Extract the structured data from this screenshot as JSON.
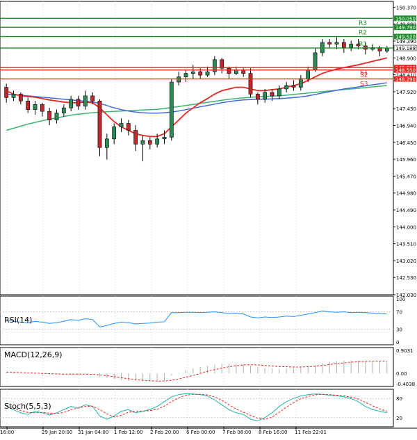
{
  "chart_data": [
    {
      "type": "candlestick",
      "panel": "price",
      "ylim": [
        142.03,
        150.54
      ],
      "yticks": [
        "150.370",
        "149.880",
        "149.390",
        "148.900",
        "148.410",
        "147.920",
        "147.430",
        "146.940",
        "146.450",
        "145.960",
        "145.470",
        "144.980",
        "144.490",
        "144.000",
        "143.510",
        "143.020",
        "142.530",
        "142.030"
      ],
      "xticks": [
        "16:00",
        "29 Jan 20:00",
        "31 Jan 04:00",
        "1 Feb 12:00",
        "2 Feb 20:00",
        "6 Feb 00:00",
        "7 Feb 08:00",
        "8 Feb 16:00",
        "11 Feb 22:01"
      ],
      "resistance": [
        {
          "name": "R3",
          "value": 149.79,
          "label": "149.790"
        },
        {
          "name": "R2",
          "value": 149.52,
          "label": "149.520"
        },
        {
          "name": "R1",
          "value": 149.188,
          "label": "149.188"
        }
      ],
      "support": [
        {
          "name": "S1",
          "value": 148.62,
          "label": "148.620"
        },
        {
          "name": "S2",
          "value": 148.55,
          "label": "148.550"
        },
        {
          "name": "S3",
          "value": 148.29,
          "label": "148.290"
        }
      ],
      "top_line": {
        "value": 150.05,
        "label": "150.050"
      },
      "current_price": "149.188",
      "candles": [
        [
          148.05,
          147.75,
          148.15,
          147.6
        ],
        [
          147.75,
          147.85,
          147.95,
          147.65
        ],
        [
          147.85,
          147.65,
          147.9,
          147.55
        ],
        [
          147.65,
          147.4,
          147.75,
          147.3
        ],
        [
          147.4,
          147.55,
          147.65,
          147.25
        ],
        [
          147.55,
          147.35,
          147.6,
          147.2
        ],
        [
          147.35,
          147.1,
          147.45,
          146.95
        ],
        [
          147.1,
          147.3,
          147.4,
          147.0
        ],
        [
          147.3,
          147.45,
          147.55,
          147.2
        ],
        [
          147.45,
          147.7,
          147.8,
          147.35
        ],
        [
          147.7,
          147.5,
          147.8,
          147.4
        ],
        [
          147.5,
          147.8,
          147.95,
          147.4
        ],
        [
          147.8,
          147.65,
          147.9,
          147.55
        ],
        [
          147.65,
          146.3,
          147.7,
          146.05
        ],
        [
          146.3,
          146.55,
          146.7,
          145.95
        ],
        [
          146.55,
          146.9,
          147.0,
          146.4
        ],
        [
          146.9,
          147.0,
          147.15,
          146.75
        ],
        [
          147.0,
          146.8,
          147.1,
          146.65
        ],
        [
          146.8,
          146.4,
          146.95,
          146.2
        ],
        [
          146.4,
          146.5,
          146.65,
          145.9
        ],
        [
          146.5,
          146.4,
          146.6,
          146.25
        ],
        [
          146.4,
          146.55,
          146.7,
          146.3
        ],
        [
          146.55,
          146.6,
          146.8,
          146.4
        ],
        [
          146.6,
          148.2,
          148.3,
          146.5
        ],
        [
          148.2,
          148.35,
          148.5,
          148.1
        ],
        [
          148.35,
          148.45,
          148.55,
          148.2
        ],
        [
          148.45,
          148.5,
          148.7,
          148.3
        ],
        [
          148.5,
          148.4,
          148.6,
          148.3
        ],
        [
          148.4,
          148.5,
          148.65,
          148.35
        ],
        [
          148.5,
          148.85,
          148.95,
          148.4
        ],
        [
          148.85,
          148.6,
          148.9,
          148.45
        ],
        [
          148.6,
          148.45,
          148.65,
          148.3
        ],
        [
          148.45,
          148.55,
          148.65,
          148.4
        ],
        [
          148.55,
          148.45,
          148.6,
          148.35
        ],
        [
          148.45,
          147.85,
          148.6,
          147.75
        ],
        [
          147.85,
          147.7,
          147.9,
          147.55
        ],
        [
          147.7,
          147.9,
          148.0,
          147.6
        ],
        [
          147.9,
          147.8,
          148.0,
          147.65
        ],
        [
          147.8,
          148.0,
          148.1,
          147.7
        ],
        [
          148.0,
          148.1,
          148.2,
          147.9
        ],
        [
          148.1,
          148.05,
          148.25,
          147.95
        ],
        [
          148.05,
          148.3,
          148.4,
          147.95
        ],
        [
          148.3,
          148.55,
          148.65,
          148.2
        ],
        [
          148.55,
          149.05,
          149.2,
          148.5
        ],
        [
          149.05,
          149.35,
          149.45,
          148.95
        ],
        [
          149.35,
          149.3,
          149.45,
          149.2
        ],
        [
          149.3,
          149.35,
          149.5,
          149.15
        ],
        [
          149.35,
          149.2,
          149.45,
          149.05
        ],
        [
          149.2,
          149.3,
          149.4,
          149.1
        ],
        [
          149.3,
          149.25,
          149.45,
          149.15
        ],
        [
          149.25,
          149.15,
          149.35,
          149.0
        ],
        [
          149.15,
          149.2,
          149.3,
          149.1
        ],
        [
          149.2,
          149.1,
          149.25,
          148.95
        ],
        [
          149.1,
          149.19,
          149.25,
          149.05
        ]
      ],
      "ma_red": [
        147.95,
        147.85,
        147.8,
        147.78,
        147.76,
        147.72,
        147.68,
        147.65,
        147.62,
        147.6,
        147.6,
        147.62,
        147.6,
        147.45,
        147.25,
        147.05,
        146.9,
        146.8,
        146.7,
        146.65,
        146.62,
        146.62,
        146.7,
        146.9,
        147.1,
        147.3,
        147.45,
        147.6,
        147.72,
        147.85,
        147.95,
        148.0,
        148.05,
        148.05,
        148.0,
        147.95,
        147.95,
        147.98,
        148.0,
        148.05,
        148.1,
        148.15,
        148.25,
        148.35,
        148.45,
        148.52,
        148.58,
        148.62,
        148.66,
        148.7,
        148.75,
        148.8,
        148.85,
        148.9
      ],
      "ma_blue": [
        147.85,
        147.83,
        147.82,
        147.8,
        147.78,
        147.76,
        147.74,
        147.72,
        147.7,
        147.68,
        147.66,
        147.64,
        147.62,
        147.58,
        147.52,
        147.45,
        147.4,
        147.36,
        147.33,
        147.31,
        147.3,
        147.3,
        147.31,
        147.33,
        147.36,
        147.4,
        147.44,
        147.48,
        147.52,
        147.56,
        147.6,
        147.63,
        147.66,
        147.68,
        147.69,
        147.7,
        147.7,
        147.71,
        147.72,
        147.73,
        147.75,
        147.77,
        147.8,
        147.84,
        147.88,
        147.92,
        147.96,
        148.0,
        148.03,
        148.06,
        148.09,
        148.12,
        148.15,
        148.18
      ],
      "ma_green": [
        146.8,
        146.86,
        146.92,
        146.98,
        147.03,
        147.08,
        147.12,
        147.16,
        147.2,
        147.24,
        147.27,
        147.29,
        147.31,
        147.33,
        147.34,
        147.35,
        147.36,
        147.37,
        147.38,
        147.39,
        147.4,
        147.41,
        147.43,
        147.46,
        147.49,
        147.52,
        147.55,
        147.58,
        147.61,
        147.64,
        147.67,
        147.7,
        147.72,
        147.74,
        147.76,
        147.77,
        147.78,
        147.79,
        147.8,
        147.82,
        147.84,
        147.86,
        147.88,
        147.9,
        147.92,
        147.94,
        147.96,
        147.98,
        148.0,
        148.02,
        148.04,
        148.06,
        148.08,
        148.1
      ]
    },
    {
      "type": "line",
      "panel": "rsi",
      "name": "RSI(14)",
      "ylim": [
        0,
        100
      ],
      "yticks": [
        "100",
        "70",
        "30",
        "0"
      ],
      "values": [
        51,
        48,
        46,
        45,
        48,
        46,
        43,
        45,
        48,
        52,
        50,
        54,
        52,
        35,
        38,
        43,
        46,
        45,
        42,
        43,
        44,
        46,
        47,
        68,
        68,
        69,
        69,
        68,
        69,
        70,
        68,
        66,
        67,
        65,
        58,
        56,
        58,
        57,
        58,
        60,
        59,
        62,
        65,
        68,
        72,
        70,
        69,
        70,
        68,
        69,
        68,
        67,
        66,
        65
      ]
    },
    {
      "type": "bar+line",
      "panel": "macd",
      "name": "MACD(12,26,9)",
      "ylim": [
        -0.4038,
        0.9031
      ],
      "yticks": [
        "0.9031",
        "0.00",
        "-0.4038"
      ],
      "histogram": [
        0.03,
        0.02,
        0.01,
        0.0,
        -0.02,
        -0.03,
        -0.04,
        -0.05,
        -0.05,
        -0.04,
        -0.04,
        -0.03,
        -0.04,
        -0.12,
        -0.18,
        -0.22,
        -0.25,
        -0.28,
        -0.3,
        -0.31,
        -0.31,
        -0.3,
        -0.28,
        -0.1,
        0.02,
        0.12,
        0.2,
        0.26,
        0.3,
        0.35,
        0.38,
        0.38,
        0.37,
        0.36,
        0.3,
        0.25,
        0.22,
        0.2,
        0.19,
        0.19,
        0.2,
        0.22,
        0.25,
        0.32,
        0.4,
        0.45,
        0.48,
        0.5,
        0.5,
        0.49,
        0.48,
        0.47,
        0.46,
        0.45
      ],
      "signal": [
        0.05,
        0.04,
        0.03,
        0.02,
        0.01,
        0.0,
        -0.01,
        -0.02,
        -0.03,
        -0.03,
        -0.03,
        -0.03,
        -0.04,
        -0.06,
        -0.09,
        -0.13,
        -0.17,
        -0.21,
        -0.24,
        -0.27,
        -0.29,
        -0.3,
        -0.3,
        -0.27,
        -0.22,
        -0.15,
        -0.08,
        0.0,
        0.08,
        0.15,
        0.21,
        0.26,
        0.3,
        0.33,
        0.34,
        0.33,
        0.31,
        0.29,
        0.27,
        0.26,
        0.25,
        0.25,
        0.26,
        0.28,
        0.31,
        0.35,
        0.38,
        0.41,
        0.44,
        0.46,
        0.47,
        0.48,
        0.48,
        0.48
      ]
    },
    {
      "type": "line",
      "panel": "stoch",
      "name": "Stoch(5,5,3)",
      "ylim": [
        0,
        100
      ],
      "yticks": [
        "80",
        "20"
      ],
      "main": [
        55,
        45,
        35,
        30,
        40,
        35,
        28,
        35,
        45,
        55,
        50,
        60,
        55,
        25,
        15,
        25,
        40,
        45,
        35,
        40,
        45,
        55,
        70,
        85,
        92,
        95,
        94,
        92,
        88,
        75,
        60,
        45,
        35,
        30,
        15,
        10,
        20,
        35,
        55,
        70,
        80,
        88,
        92,
        94,
        93,
        90,
        88,
        85,
        80,
        70,
        55,
        45,
        40,
        35
      ],
      "signal": [
        58,
        50,
        42,
        36,
        35,
        36,
        34,
        33,
        36,
        45,
        50,
        55,
        56,
        45,
        32,
        22,
        27,
        37,
        40,
        40,
        42,
        46,
        56,
        70,
        82,
        90,
        93,
        93,
        91,
        85,
        74,
        60,
        47,
        37,
        27,
        18,
        15,
        21,
        37,
        53,
        67,
        79,
        86,
        91,
        93,
        92,
        90,
        88,
        84,
        78,
        68,
        57,
        47,
        40
      ]
    }
  ]
}
